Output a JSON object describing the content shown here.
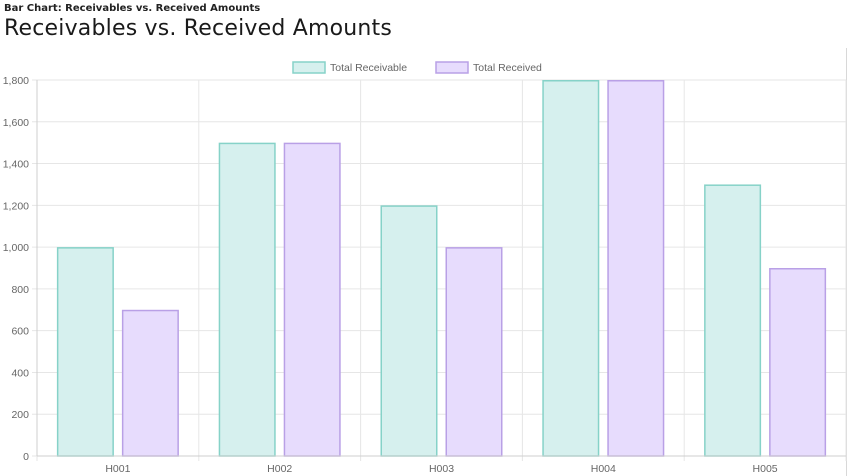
{
  "page": {
    "caption": "Bar Chart: Receivables vs. Received Amounts",
    "heading": "Receivables vs. Received Amounts"
  },
  "chart_data": {
    "type": "bar",
    "categories": [
      "H001",
      "H002",
      "H003",
      "H004",
      "H005"
    ],
    "series": [
      {
        "name": "Total Receivable",
        "values": [
          1000,
          1500,
          1200,
          1800,
          1300
        ],
        "fill": "#d6f0ee",
        "stroke": "#86d2c8"
      },
      {
        "name": "Total Received",
        "values": [
          700,
          1500,
          1000,
          1800,
          900
        ],
        "fill": "#e7dcfd",
        "stroke": "#b9a0e6"
      }
    ],
    "ylim": [
      0,
      1800
    ],
    "yticks": [
      "0",
      "200",
      "400",
      "600",
      "800",
      "1,000",
      "1,200",
      "1,400",
      "1,600",
      "1,800"
    ],
    "grid": true,
    "legend_position": "top-center",
    "xlabel": "",
    "ylabel": ""
  }
}
